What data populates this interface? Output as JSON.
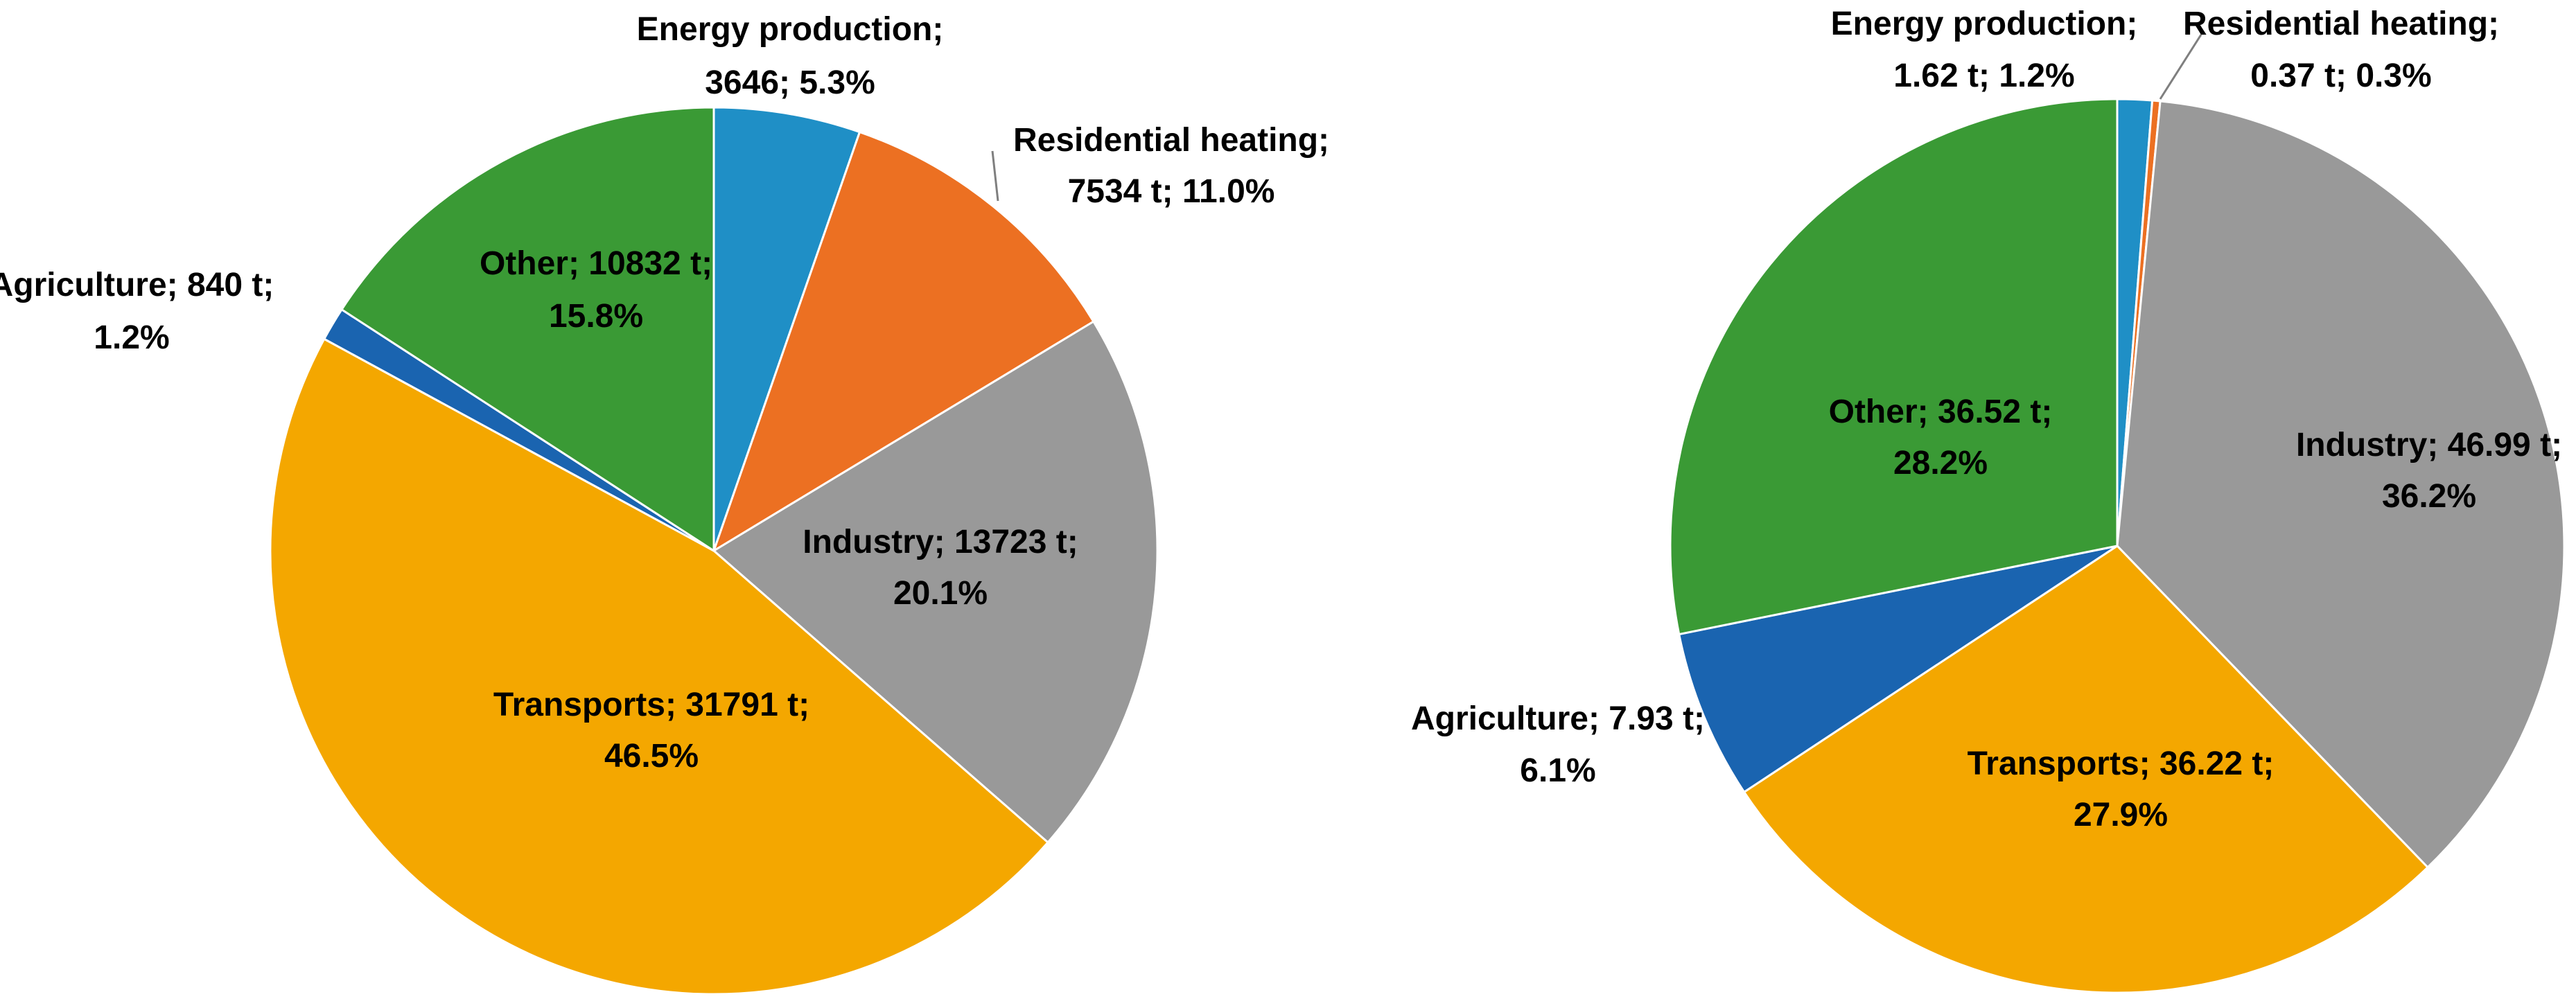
{
  "chart_data": [
    {
      "type": "pie",
      "title": "",
      "start_angle_deg": 0,
      "direction": "clockwise",
      "slices": [
        {
          "name": "Energy production",
          "value": 3646,
          "percent": 5.3,
          "color": "#1f8fc6",
          "label_lines": [
            "Energy production;",
            "3646; 5.3%"
          ]
        },
        {
          "name": "Residential heating",
          "value": 7534,
          "percent": 11.0,
          "color": "#ec7022",
          "label_lines": [
            "Residential heating;",
            "7534 t; 11.0%"
          ]
        },
        {
          "name": "Industry",
          "value": 13723,
          "percent": 20.1,
          "color": "#999999",
          "label_lines": [
            "Industry; 13723 t;",
            "20.1%"
          ]
        },
        {
          "name": "Transports",
          "value": 31791,
          "percent": 46.5,
          "color": "#f4a700",
          "label_lines": [
            "Transports; 31791 t;",
            "46.5%"
          ]
        },
        {
          "name": "Agriculture",
          "value": 840,
          "percent": 1.2,
          "color": "#1a64b0",
          "label_lines": [
            "Agriculture; 840 t;",
            "1.2%"
          ]
        },
        {
          "name": "Other",
          "value": 10832,
          "percent": 15.8,
          "color": "#3a9a35",
          "label_lines": [
            "Other; 10832 t;",
            "15.8%"
          ]
        }
      ]
    },
    {
      "type": "pie",
      "title": "",
      "start_angle_deg": 0,
      "direction": "clockwise",
      "slices": [
        {
          "name": "Energy production",
          "value": 1.62,
          "percent": 1.2,
          "color": "#1f8fc6",
          "label_lines": [
            "Energy production;",
            "1.62 t; 1.2%"
          ]
        },
        {
          "name": "Residential heating",
          "value": 0.37,
          "percent": 0.3,
          "color": "#ec7022",
          "label_lines": [
            "Residential heating;",
            "0.37 t; 0.3%"
          ]
        },
        {
          "name": "Industry",
          "value": 46.99,
          "percent": 36.2,
          "color": "#999999",
          "label_lines": [
            "Industry; 46.99 t;",
            "36.2%"
          ]
        },
        {
          "name": "Transports",
          "value": 36.22,
          "percent": 27.9,
          "color": "#f4a700",
          "label_lines": [
            "Transports; 36.22 t;",
            "27.9%"
          ]
        },
        {
          "name": "Agriculture",
          "value": 7.93,
          "percent": 6.1,
          "color": "#1a64b0",
          "label_lines": [
            "Agriculture; 7.93 t;",
            "6.1%"
          ]
        },
        {
          "name": "Other",
          "value": 36.52,
          "percent": 28.2,
          "color": "#3a9a35",
          "label_lines": [
            "Other; 36.52 t;",
            "28.2%"
          ]
        }
      ]
    }
  ]
}
